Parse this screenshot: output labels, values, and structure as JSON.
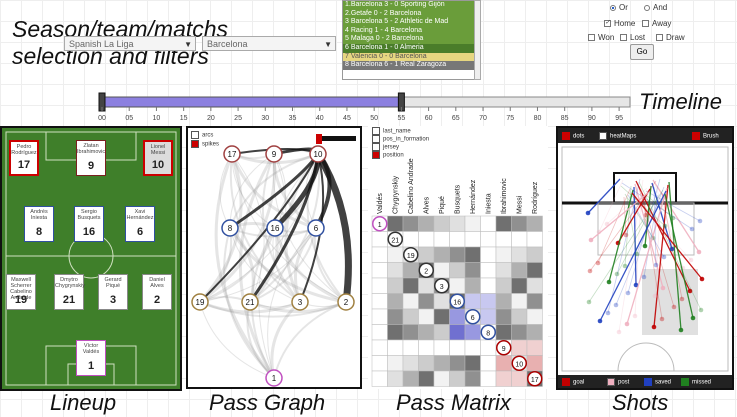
{
  "overlay_titles": {
    "selection": "Season/team/matchs\nselection and filters",
    "timeline": "Timeline",
    "lineup": "Lineup",
    "pass_graph": "Pass Graph",
    "pass_matrix": "Pass Matrix",
    "shots": "Shots"
  },
  "selectors": {
    "league": "Spanish La Liga",
    "team": "Barcelona"
  },
  "matches": [
    {
      "label": "1.Barcelona 3 - 0 Sporting Gijón",
      "color": "#6a9d3a"
    },
    {
      "label": "2.Getafe 0 - 2 Barcelona",
      "color": "#6a9d3a"
    },
    {
      "label": "3 Barcelona 5 - 2 Athletic de Mad",
      "color": "#6a9d3a"
    },
    {
      "label": "4 Racing 1 - 4 Barcelona",
      "color": "#6a9d3a"
    },
    {
      "label": "5 Malaga 0 - 2 Barcelona",
      "color": "#6a9d3a"
    },
    {
      "label": "6 Barcelona 1 - 0 Almeria",
      "color": "#4a7d2a"
    },
    {
      "label": "7 Valencia 0 - 0 Barcelona",
      "color": "#e6d680"
    },
    {
      "label": "8 Barcelona 6 - 1 Real Zaragoza",
      "color": "#777777"
    }
  ],
  "filters": {
    "or": "Or",
    "and": "And",
    "home": "Home",
    "away": "Away",
    "won": "Won",
    "lost": "Lost",
    "draw": "Draw",
    "go": "Go"
  },
  "timeline": {
    "ticks": [
      "00",
      "05",
      "10",
      "15",
      "20",
      "25",
      "30",
      "35",
      "40",
      "45",
      "50",
      "55",
      "60",
      "65",
      "70",
      "75",
      "80",
      "85",
      "90",
      "95"
    ],
    "range_start": 0,
    "range_end": 55,
    "max": 97
  },
  "lineup": [
    {
      "name": "Pedro Rodríguez",
      "num": "17",
      "style": "red-border"
    },
    {
      "name": "Zlatan Ibrahimovic",
      "num": "9",
      "style": "normal"
    },
    {
      "name": "Lionel Messi",
      "num": "10",
      "style": "highlight"
    },
    {
      "name": "Andrés Iniesta",
      "num": "8",
      "style": "blue"
    },
    {
      "name": "Sergio Busquets",
      "num": "16",
      "style": "blue"
    },
    {
      "name": "Xavi Hernández",
      "num": "6",
      "style": "blue"
    },
    {
      "name": "Maxwell Scherrer Cabelino Andrade",
      "num": "19",
      "style": "gray"
    },
    {
      "name": "Dmytro Chygrynskiy",
      "num": "21",
      "style": "gray"
    },
    {
      "name": "Gerard Piqué",
      "num": "3",
      "style": "gray"
    },
    {
      "name": "Daniel Alves",
      "num": "2",
      "style": "gray"
    },
    {
      "name": "Víctor Valdés",
      "num": "1",
      "style": "pink"
    }
  ],
  "pass_graph": {
    "legend": [
      "arcs",
      "spikes"
    ],
    "nodes": [
      "17",
      "9",
      "10",
      "8",
      "16",
      "6",
      "19",
      "21",
      "3",
      "2",
      "1"
    ]
  },
  "pass_matrix": {
    "legend": [
      "last_name",
      "pos_in_formation",
      "jersey",
      "position"
    ],
    "columns": [
      "Valdés",
      "Chygrynskiy",
      "Cabelino Andrade",
      "Alves",
      "Piqué",
      "Busquets",
      "Hernández",
      "Iniesta",
      "Ibrahimovic",
      "Messi",
      "Rodríguez"
    ],
    "diagonal": [
      "1",
      "21",
      "19",
      "2",
      "3",
      "16",
      "6",
      "8",
      "9",
      "10",
      "17"
    ]
  },
  "shots": {
    "top_legend": [
      "dots",
      "heatMaps",
      "Brush"
    ],
    "bottom_legend": [
      "goal",
      "post",
      "saved",
      "missed"
    ],
    "colors": {
      "goal": "#c00000",
      "post": "#f0b0c0",
      "saved": "#2040c0",
      "missed": "#208020"
    }
  }
}
